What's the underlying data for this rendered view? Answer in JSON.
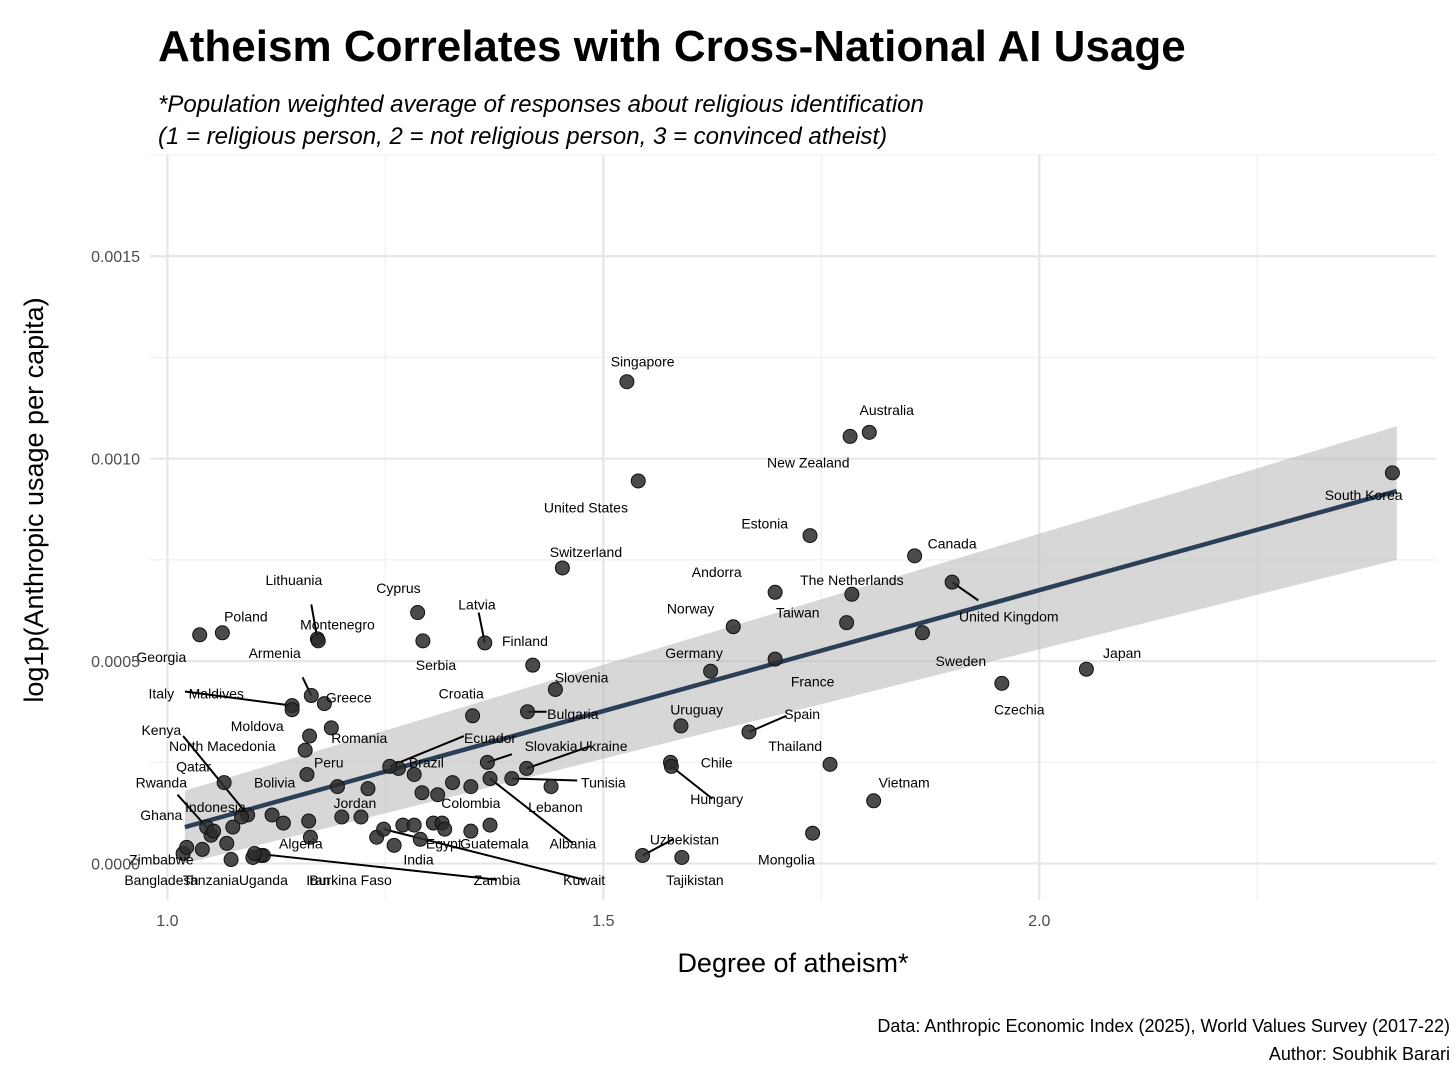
{
  "chart_data": {
    "type": "scatter",
    "title": "Atheism Correlates with Cross-National AI Usage",
    "subtitle_lines": [
      "*Population weighted average of responses about religious identification",
      "(1 = religious person, 2 = not religious person, 3 = convinced atheist)"
    ],
    "xlabel": "Degree of atheism*",
    "ylabel": "log1p(Anthropic usage per capita)",
    "xlim": [
      0.98,
      2.455
    ],
    "ylim": [
      -9e-05,
      0.00175
    ],
    "xticks": [
      {
        "value": 1.0,
        "label": "1.0"
      },
      {
        "value": 1.5,
        "label": "1.5"
      },
      {
        "value": 2.0,
        "label": "2.0"
      }
    ],
    "yticks": [
      {
        "value": 0.0,
        "label": "0.0000"
      },
      {
        "value": 0.0005,
        "label": "0.0005"
      },
      {
        "value": 0.001,
        "label": "0.0010"
      },
      {
        "value": 0.0015,
        "label": "0.0015"
      }
    ],
    "x_minor_gridlines": [
      1.25,
      1.75,
      2.25
    ],
    "y_minor_gridlines": [
      0.00025,
      0.00075,
      0.00125,
      0.00175
    ],
    "fit": {
      "type": "linear",
      "x": [
        1.02,
        2.41
      ],
      "y": [
        9e-05,
        0.00092
      ],
      "ci_upper": [
        0.00018,
        0.00108
      ],
      "ci_lower": [
        0.0,
        0.00075
      ]
    },
    "points": [
      {
        "name": "Singapore",
        "x": 1.527,
        "y": 0.00119,
        "label": "Singapore",
        "lx": 1.545,
        "ly": 0.00124
      },
      {
        "name": "Australia",
        "x": 1.805,
        "y": 0.001065,
        "label": "Australia",
        "lx": 1.825,
        "ly": 0.00112
      },
      {
        "name": "New Zealand",
        "x": 1.783,
        "y": 0.001055,
        "label": "New Zealand",
        "lx": 1.735,
        "ly": 0.00099
      },
      {
        "name": "South Korea",
        "x": 2.405,
        "y": 0.000965,
        "label": "South Korea",
        "lx": 2.372,
        "ly": 0.00091
      },
      {
        "name": "United States",
        "x": 1.54,
        "y": 0.000945,
        "label": "United States",
        "lx": 1.48,
        "ly": 0.00088
      },
      {
        "name": "Estonia",
        "x": 1.737,
        "y": 0.00081,
        "label": "Estonia",
        "lx": 1.685,
        "ly": 0.00084
      },
      {
        "name": "Canada",
        "x": 1.857,
        "y": 0.00076,
        "label": "Canada",
        "lx": 1.9,
        "ly": 0.00079
      },
      {
        "name": "Switzerland",
        "x": 1.453,
        "y": 0.00073,
        "label": "Switzerland",
        "lx": 1.48,
        "ly": 0.00077
      },
      {
        "name": "Andorra",
        "x": 1.697,
        "y": 0.00067,
        "label": "Andorra",
        "lx": 1.63,
        "ly": 0.00072
      },
      {
        "name": "The Netherlands",
        "x": 1.785,
        "y": 0.000665,
        "label": "The Netherlands",
        "lx": 1.785,
        "ly": 0.0007
      },
      {
        "name": "United Kingdom",
        "x": 1.9,
        "y": 0.000695,
        "label": "United Kingdom",
        "lx": 1.965,
        "ly": 0.00061,
        "lead": [
          1.93,
          0.00065
        ]
      },
      {
        "name": "Norway",
        "x": 1.649,
        "y": 0.000585,
        "label": "Norway",
        "lx": 1.6,
        "ly": 0.00063
      },
      {
        "name": "Taiwan",
        "x": 1.779,
        "y": 0.000595,
        "label": "Taiwan",
        "lx": 1.723,
        "ly": 0.00062
      },
      {
        "name": "Sweden",
        "x": 1.866,
        "y": 0.00057,
        "label": "Sweden",
        "lx": 1.91,
        "ly": 0.0005
      },
      {
        "name": "Lithuania",
        "x": 1.172,
        "y": 0.000555,
        "label": "Lithuania",
        "lx": 1.145,
        "ly": 0.0007,
        "lead": [
          1.165,
          0.00064
        ]
      },
      {
        "name": "Cyprus",
        "x": 1.287,
        "y": 0.00062,
        "label": "Cyprus",
        "lx": 1.265,
        "ly": 0.00068
      },
      {
        "name": "Latvia",
        "x": 1.364,
        "y": 0.000545,
        "label": "Latvia",
        "lx": 1.355,
        "ly": 0.00064,
        "lead": [
          1.357,
          0.00062
        ]
      },
      {
        "name": "Poland",
        "x": 1.063,
        "y": 0.00057,
        "label": "Poland",
        "lx": 1.09,
        "ly": 0.00061
      },
      {
        "name": "Montenegro",
        "x": 1.173,
        "y": 0.00055,
        "label": "Montenegro",
        "lx": 1.195,
        "ly": 0.00059
      },
      {
        "name": "Finland",
        "x": 1.419,
        "y": 0.00049,
        "label": "Finland",
        "lx": 1.41,
        "ly": 0.00055
      },
      {
        "name": "Serbia",
        "x": 1.293,
        "y": 0.00055,
        "label": "Serbia",
        "lx": 1.308,
        "ly": 0.00049
      },
      {
        "name": "Germany",
        "x": 1.623,
        "y": 0.000475,
        "label": "Germany",
        "lx": 1.604,
        "ly": 0.00052
      },
      {
        "name": "France",
        "x": 1.697,
        "y": 0.000505,
        "label": "France",
        "lx": 1.74,
        "ly": 0.00045
      },
      {
        "name": "Georgia",
        "x": 1.037,
        "y": 0.000565,
        "label": "Georgia",
        "lx": 0.993,
        "ly": 0.00051
      },
      {
        "name": "Slovenia",
        "x": 1.445,
        "y": 0.00043,
        "label": "Slovenia",
        "lx": 1.475,
        "ly": 0.00046
      },
      {
        "name": "Armenia",
        "x": 1.165,
        "y": 0.000415,
        "label": "Armenia",
        "lx": 1.123,
        "ly": 0.00052,
        "lead": [
          1.155,
          0.00046
        ]
      },
      {
        "name": "Greece",
        "x": 1.18,
        "y": 0.000395,
        "label": "Greece",
        "lx": 1.208,
        "ly": 0.00041
      },
      {
        "name": "Japan",
        "x": 2.054,
        "y": 0.00048,
        "label": "Japan",
        "lx": 2.095,
        "ly": 0.00052
      },
      {
        "name": "Czechia",
        "x": 1.957,
        "y": 0.000445,
        "label": "Czechia",
        "lx": 1.977,
        "ly": 0.00038
      },
      {
        "name": "Italy",
        "x": 1.143,
        "y": 0.00039,
        "label": "Italy",
        "lx": 0.993,
        "ly": 0.00042,
        "lead": [
          1.02,
          0.000425
        ]
      },
      {
        "name": "Maldives",
        "x": 1.143,
        "y": 0.00038,
        "label": "Maldives",
        "lx": 1.056,
        "ly": 0.00042
      },
      {
        "name": "Croatia",
        "x": 1.35,
        "y": 0.000365,
        "label": "Croatia",
        "lx": 1.337,
        "ly": 0.00042
      },
      {
        "name": "Bulgaria",
        "x": 1.413,
        "y": 0.000375,
        "label": "Bulgaria",
        "lx": 1.465,
        "ly": 0.00037,
        "lead": [
          1.435,
          0.000375
        ]
      },
      {
        "name": "Moldova",
        "x": 1.163,
        "y": 0.000315,
        "label": "Moldova",
        "lx": 1.103,
        "ly": 0.00034
      },
      {
        "name": "Romania",
        "x": 1.188,
        "y": 0.000335,
        "label": "Romania",
        "lx": 1.22,
        "ly": 0.00031
      },
      {
        "name": "Uruguay",
        "x": 1.589,
        "y": 0.00034,
        "label": "Uruguay",
        "lx": 1.607,
        "ly": 0.00038
      },
      {
        "name": "Spain",
        "x": 1.667,
        "y": 0.000325,
        "label": "Spain",
        "lx": 1.728,
        "ly": 0.00037,
        "lead": [
          1.71,
          0.000365
        ]
      },
      {
        "name": "Kenya",
        "x": 1.092,
        "y": 0.00012,
        "label": "Kenya",
        "lx": 0.993,
        "ly": 0.00033,
        "lead": [
          1.018,
          0.000315
        ]
      },
      {
        "name": "North Macedonia",
        "x": 1.158,
        "y": 0.00028,
        "label": "North Macedonia",
        "lx": 1.063,
        "ly": 0.00029
      },
      {
        "name": "Ecuador",
        "x": 1.255,
        "y": 0.00024,
        "label": "Ecuador",
        "lx": 1.37,
        "ly": 0.00031,
        "lead": [
          1.34,
          0.000315
        ]
      },
      {
        "name": "Thailand",
        "x": 1.76,
        "y": 0.000245,
        "label": "Thailand",
        "lx": 1.72,
        "ly": 0.00029
      },
      {
        "name": "Ukraine",
        "x": 1.412,
        "y": 0.000235,
        "label": "Ukraine",
        "lx": 1.5,
        "ly": 0.00029,
        "lead": [
          1.485,
          0.00029
        ]
      },
      {
        "name": "Slovakia",
        "x": 1.367,
        "y": 0.00025,
        "label": "Slovakia",
        "lx": 1.44,
        "ly": 0.00029,
        "lead": [
          1.395,
          0.00027
        ]
      },
      {
        "name": "Brazil",
        "x": 1.283,
        "y": 0.00022,
        "label": "Brazil",
        "lx": 1.297,
        "ly": 0.00025
      },
      {
        "name": "Peru",
        "x": 1.16,
        "y": 0.00022,
        "label": "Peru",
        "lx": 1.185,
        "ly": 0.00025
      },
      {
        "name": "Chile",
        "x": 1.577,
        "y": 0.00025,
        "label": "Chile",
        "lx": 1.63,
        "ly": 0.00025
      },
      {
        "name": "Qatar",
        "x": 1.065,
        "y": 0.0002,
        "label": "Qatar",
        "lx": 1.03,
        "ly": 0.00024
      },
      {
        "name": "Bolivia",
        "x": 1.195,
        "y": 0.00019,
        "label": "Bolivia",
        "lx": 1.123,
        "ly": 0.0002
      },
      {
        "name": "Tunisia",
        "x": 1.395,
        "y": 0.00021,
        "label": "Tunisia",
        "lx": 1.5,
        "ly": 0.0002,
        "lead": [
          1.47,
          0.000205
        ]
      },
      {
        "name": "Rwanda",
        "x": 1.045,
        "y": 9e-05,
        "label": "Rwanda",
        "lx": 0.993,
        "ly": 0.0002,
        "lead": [
          1.0115,
          0.00017
        ]
      },
      {
        "name": "Vietnam",
        "x": 1.81,
        "y": 0.000155,
        "label": "Vietnam",
        "lx": 1.845,
        "ly": 0.0002
      },
      {
        "name": "Lebanon",
        "x": 1.44,
        "y": 0.00019,
        "label": "Lebanon",
        "lx": 1.445,
        "ly": 0.00014
      },
      {
        "name": "Colombia",
        "x": 1.31,
        "y": 0.00017,
        "label": "Colombia",
        "lx": 1.348,
        "ly": 0.00015
      },
      {
        "name": "Hungary",
        "x": 1.578,
        "y": 0.00024,
        "label": "Hungary",
        "lx": 1.63,
        "ly": 0.00016,
        "lead": [
          1.625,
          0.00016
        ]
      },
      {
        "name": "Indonesia",
        "x": 1.085,
        "y": 0.000115,
        "label": "Indonesia",
        "lx": 1.055,
        "ly": 0.00014
      },
      {
        "name": "Jordan",
        "x": 1.222,
        "y": 0.000115,
        "label": "Jordan",
        "lx": 1.215,
        "ly": 0.00015
      },
      {
        "name": "Ghana",
        "x": 1.053,
        "y": 8e-05,
        "label": "Ghana",
        "lx": 0.993,
        "ly": 0.00012
      },
      {
        "name": "Algeria",
        "x": 1.164,
        "y": 6.5e-05,
        "label": "Algeria",
        "lx": 1.153,
        "ly": 5e-05
      },
      {
        "name": "Guatemala",
        "x": 1.348,
        "y": 8e-05,
        "label": "Guatemala",
        "lx": 1.375,
        "ly": 5e-05
      },
      {
        "name": "Egypt",
        "x": 1.29,
        "y": 6e-05,
        "label": "Egypt",
        "lx": 1.317,
        "ly": 5e-05
      },
      {
        "name": "Albania",
        "x": 1.37,
        "y": 0.00021,
        "label": "Albania",
        "lx": 1.465,
        "ly": 5e-05,
        "lead": [
          1.465,
          5e-05
        ]
      },
      {
        "name": "Uzbekistan",
        "x": 1.545,
        "y": 2e-05,
        "label": "Uzbekistan",
        "lx": 1.593,
        "ly": 6e-05,
        "lead": [
          1.58,
          6e-05
        ]
      },
      {
        "name": "Mongolia",
        "x": 1.74,
        "y": 7.5e-05,
        "label": "Mongolia",
        "lx": 1.71,
        "ly": 1e-05
      },
      {
        "name": "India",
        "x": 1.26,
        "y": 4.5e-05,
        "label": "India",
        "lx": 1.288,
        "ly": 1e-05
      },
      {
        "name": "Zimbabwe",
        "x": 1.018,
        "y": 2.5e-05,
        "label": "Zimbabwe",
        "lx": 0.993,
        "ly": 1e-05
      },
      {
        "name": "Bangladesh",
        "x": 1.022,
        "y": 4e-05,
        "label": "Bangladesh",
        "lx": 0.993,
        "ly": -4e-05
      },
      {
        "name": "Tanzania",
        "x": 1.073,
        "y": 1e-05,
        "label": "Tanzania",
        "lx": 1.05,
        "ly": -4e-05
      },
      {
        "name": "Uganda",
        "x": 1.11,
        "y": 2e-05,
        "label": "Uganda",
        "lx": 1.11,
        "ly": -4e-05
      },
      {
        "name": "Iran",
        "x": 1.107,
        "y": 2e-05,
        "label": "Iran",
        "lx": 1.173,
        "ly": -4e-05
      },
      {
        "name": "Burkina Faso",
        "x": 1.098,
        "y": 1.5e-05,
        "label": "Burkina Faso",
        "lx": 1.21,
        "ly": -4e-05
      },
      {
        "name": "Zambia",
        "x": 1.1,
        "y": 2.5e-05,
        "label": "Zambia",
        "lx": 1.378,
        "ly": -4e-05,
        "lead": [
          1.378,
          -4e-05
        ]
      },
      {
        "name": "Kuwait",
        "x": 1.248,
        "y": 8.5e-05,
        "label": "Kuwait",
        "lx": 1.478,
        "ly": -4e-05,
        "lead": [
          1.478,
          -4e-05
        ]
      },
      {
        "name": "Tajikistan",
        "x": 1.59,
        "y": 1.5e-05,
        "label": "Tajikistan",
        "lx": 1.605,
        "ly": -4e-05
      }
    ],
    "extra_points": [
      {
        "x": 1.075,
        "y": 9e-05
      },
      {
        "x": 1.068,
        "y": 5e-05
      },
      {
        "x": 1.05,
        "y": 7e-05
      },
      {
        "x": 1.04,
        "y": 3.5e-05
      },
      {
        "x": 1.12,
        "y": 0.00012
      },
      {
        "x": 1.133,
        "y": 0.0001
      },
      {
        "x": 1.162,
        "y": 0.000105
      },
      {
        "x": 1.2,
        "y": 0.000115
      },
      {
        "x": 1.23,
        "y": 0.000185
      },
      {
        "x": 1.24,
        "y": 6.5e-05
      },
      {
        "x": 1.265,
        "y": 0.000235
      },
      {
        "x": 1.27,
        "y": 9.5e-05
      },
      {
        "x": 1.283,
        "y": 9.5e-05
      },
      {
        "x": 1.292,
        "y": 0.000175
      },
      {
        "x": 1.305,
        "y": 0.0001
      },
      {
        "x": 1.315,
        "y": 0.0001
      },
      {
        "x": 1.318,
        "y": 8.5e-05
      },
      {
        "x": 1.327,
        "y": 0.0002
      },
      {
        "x": 1.348,
        "y": 0.00019
      },
      {
        "x": 1.37,
        "y": 9.5e-05
      }
    ],
    "caption_lines": [
      "Data: Anthropic Economic Index (2025), World Values Survey (2017-22)",
      "Author: Soubhik Barari"
    ]
  }
}
